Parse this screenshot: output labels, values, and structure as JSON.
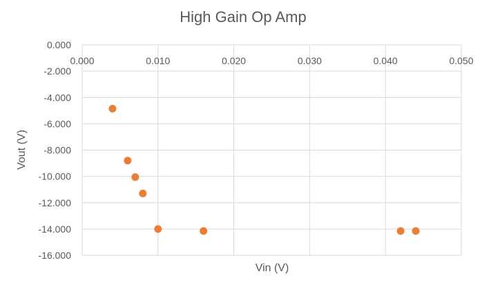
{
  "chart_data": {
    "type": "scatter",
    "title": "High Gain Op Amp",
    "xlabel": "Vin (V)",
    "ylabel": "Vout (V)",
    "xlim": [
      0,
      0.05
    ],
    "ylim": [
      -16,
      0
    ],
    "x_ticks": [
      "0.000",
      "0.010",
      "0.020",
      "0.030",
      "0.040",
      "0.050"
    ],
    "y_ticks": [
      "0.000",
      "-2.000",
      "-4.000",
      "-6.000",
      "-8.000",
      "-10.000",
      "-12.000",
      "-14.000",
      "-16.000"
    ],
    "grid": true,
    "legend": "none",
    "marker_color": "#ED7D31",
    "series": [
      {
        "x": [
          0.004,
          0.006,
          0.007,
          0.008,
          0.01,
          0.016,
          0.042,
          0.044
        ],
        "y": [
          -4.85,
          -8.8,
          -10.05,
          -11.3,
          -14.0,
          -14.15,
          -14.15,
          -14.15
        ]
      }
    ]
  }
}
